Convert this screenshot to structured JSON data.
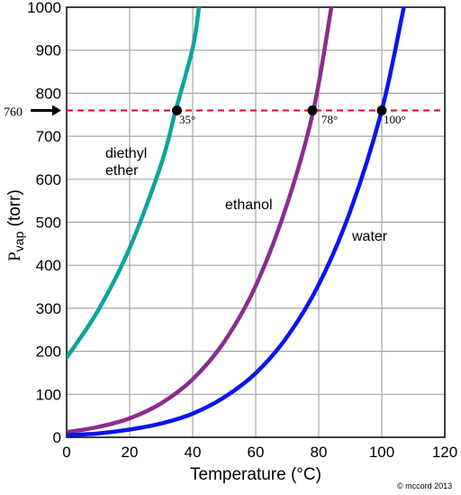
{
  "chart_data": {
    "type": "line",
    "title": "",
    "xlabel": "Temperature (°C)",
    "ylabel": {
      "main": "P",
      "sub": "vap",
      "unit": " (torr)"
    },
    "xlim": [
      0,
      120
    ],
    "ylim": [
      0,
      1000
    ],
    "x_ticks": [
      0,
      20,
      40,
      60,
      80,
      100,
      120
    ],
    "y_ticks": [
      0,
      100,
      200,
      300,
      400,
      500,
      600,
      700,
      800,
      900,
      1000
    ],
    "grid": true,
    "reference_line": {
      "value": 760,
      "label": "760",
      "color": "#e8001c",
      "style": "dashed"
    },
    "series": [
      {
        "name": "diethyl ether",
        "label_lines": [
          "diethyl",
          "ether"
        ],
        "color": "#0aa59c",
        "points": [
          [
            0,
            185
          ],
          [
            10,
            295
          ],
          [
            20,
            440
          ],
          [
            30,
            635
          ],
          [
            34.6,
            760
          ],
          [
            40,
            905
          ],
          [
            42,
            1000
          ]
        ],
        "boiling_point": 35,
        "boiling_label": "35°"
      },
      {
        "name": "ethanol",
        "label_lines": [
          "ethanol"
        ],
        "color": "#8c2b8f",
        "points": [
          [
            0,
            12
          ],
          [
            10,
            24
          ],
          [
            20,
            44
          ],
          [
            30,
            79
          ],
          [
            40,
            135
          ],
          [
            50,
            222
          ],
          [
            60,
            352
          ],
          [
            70,
            543
          ],
          [
            78.3,
            760
          ],
          [
            84,
            1000
          ]
        ],
        "boiling_point": 78,
        "boiling_label": "78°"
      },
      {
        "name": "water",
        "label_lines": [
          "water"
        ],
        "color": "#0a14f0",
        "points": [
          [
            0,
            5
          ],
          [
            10,
            9
          ],
          [
            20,
            18
          ],
          [
            30,
            32
          ],
          [
            40,
            55
          ],
          [
            50,
            93
          ],
          [
            60,
            149
          ],
          [
            70,
            234
          ],
          [
            80,
            355
          ],
          [
            90,
            526
          ],
          [
            100,
            760
          ],
          [
            107,
            1000
          ]
        ],
        "boiling_point": 100,
        "boiling_label": "100°"
      }
    ]
  },
  "credit": "© mccord 2013"
}
